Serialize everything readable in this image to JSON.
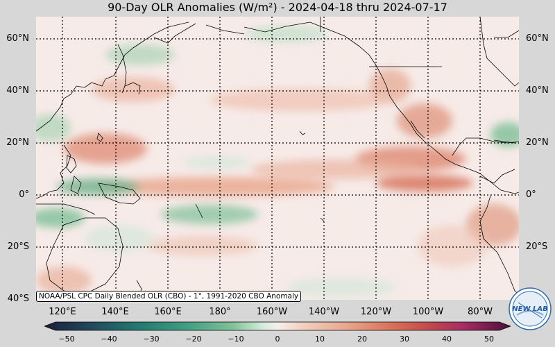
{
  "title": "90-Day OLR Anomalies (W/m²) - 2024-04-18 thru 2024-07-17",
  "lat_labels": [
    "60°N",
    "40°N",
    "20°N",
    "0°",
    "20°S",
    "40°S"
  ],
  "lon_labels": [
    "120°E",
    "140°E",
    "160°E",
    "180°",
    "160°W",
    "140°W",
    "120°W",
    "100°W",
    "80°W"
  ],
  "note": "NOAA/PSL CPC Daily Blended OLR (CBO) - 1°, 1991-2020 CBO Anomaly",
  "colorbar": {
    "ticks": [
      "−50",
      "−40",
      "−30",
      "−20",
      "−10",
      "0",
      "10",
      "20",
      "30",
      "40",
      "50"
    ],
    "colors": [
      "#1c1f38",
      "#21495e",
      "#24786f",
      "#3f9c82",
      "#7dbf97",
      "#bfe0c8",
      "#f7efec",
      "#f2d2c4",
      "#e8a58c",
      "#d76f57",
      "#c0474f",
      "#a52d62",
      "#7a1a5e",
      "#4a0f3a"
    ]
  },
  "logo": {
    "text": "NEW LAB",
    "icon": "noaa-psl-logo-icon"
  }
}
